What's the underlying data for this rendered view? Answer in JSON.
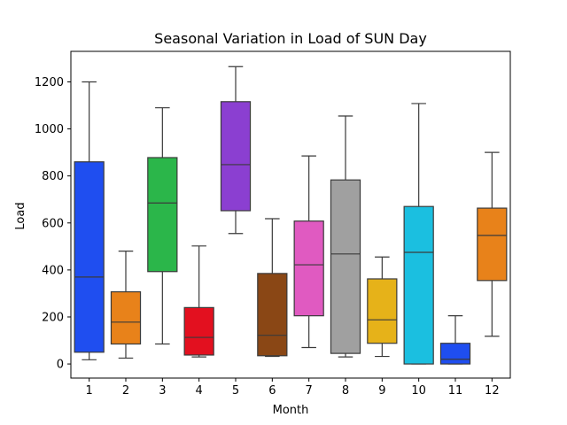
{
  "chart_data": {
    "type": "box",
    "title": "Seasonal Variation in Load of SUN Day",
    "xlabel": "Month",
    "ylabel": "Load",
    "categories": [
      "1",
      "2",
      "3",
      "4",
      "5",
      "6",
      "7",
      "8",
      "9",
      "10",
      "11",
      "12"
    ],
    "yticks": [
      0,
      200,
      400,
      600,
      800,
      1000,
      1200
    ],
    "ylim": [
      -60,
      1330
    ],
    "grid": false,
    "legend": "none",
    "boxes": [
      {
        "category": "1",
        "min": 18,
        "q1": 50,
        "median": 370,
        "q3": 860,
        "max": 1200,
        "color": "#1f4ef0"
      },
      {
        "category": "2",
        "min": 25,
        "q1": 85,
        "median": 178,
        "q3": 307,
        "max": 480,
        "color": "#e8821a"
      },
      {
        "category": "3",
        "min": 85,
        "q1": 393,
        "median": 685,
        "q3": 878,
        "max": 1090,
        "color": "#2bb64a"
      },
      {
        "category": "4",
        "min": 30,
        "q1": 38,
        "median": 113,
        "q3": 240,
        "max": 502,
        "color": "#e3101f"
      },
      {
        "category": "5",
        "min": 555,
        "q1": 652,
        "median": 848,
        "q3": 1116,
        "max": 1265,
        "color": "#8b3fd1"
      },
      {
        "category": "6",
        "min": 32,
        "q1": 35,
        "median": 122,
        "q3": 385,
        "max": 618,
        "color": "#8a4715"
      },
      {
        "category": "7",
        "min": 70,
        "q1": 205,
        "median": 422,
        "q3": 608,
        "max": 885,
        "color": "#e05ac1"
      },
      {
        "category": "8",
        "min": 30,
        "q1": 45,
        "median": 468,
        "q3": 783,
        "max": 1055,
        "color": "#a0a0a0"
      },
      {
        "category": "9",
        "min": 32,
        "q1": 88,
        "median": 188,
        "q3": 362,
        "max": 455,
        "color": "#e6b219"
      },
      {
        "category": "10",
        "min": 0,
        "q1": 0,
        "median": 475,
        "q3": 670,
        "max": 1108,
        "color": "#1bbfe0"
      },
      {
        "category": "11",
        "min": 0,
        "q1": 0,
        "median": 20,
        "q3": 88,
        "max": 205,
        "color": "#1f4ef0"
      },
      {
        "category": "12",
        "min": 118,
        "q1": 355,
        "median": 547,
        "q3": 663,
        "max": 900,
        "color": "#e8821a"
      }
    ]
  }
}
